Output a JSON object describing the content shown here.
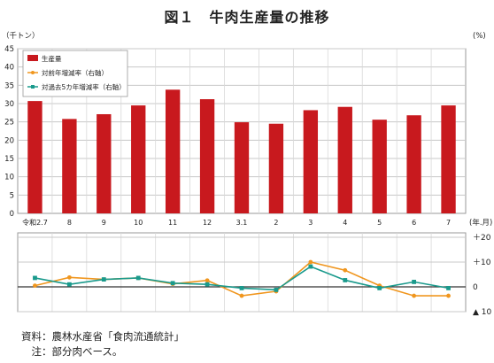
{
  "title": "図１　牛肉生産量の推移",
  "chart_data": {
    "type": "bar+line",
    "categories": [
      "令和2.7",
      "8",
      "9",
      "10",
      "11",
      "12",
      "3.1",
      "2",
      "3",
      "4",
      "5",
      "6",
      "7"
    ],
    "x_unit": "(年.月)",
    "left_axis": {
      "unit": "（千トン）",
      "range": [
        0,
        45
      ],
      "ticks": [
        "0",
        "5",
        "10",
        "15",
        "20",
        "25",
        "30",
        "35",
        "40",
        "45"
      ]
    },
    "right_axis": {
      "unit": "(%)",
      "range": [
        -10,
        20
      ],
      "tick_labels": [
        {
          "value": 20,
          "label": "＋20"
        },
        {
          "value": 10,
          "label": "＋10"
        },
        {
          "value": 0,
          "label": "0"
        },
        {
          "value": -10,
          "label": "▲ 10"
        }
      ]
    },
    "grid": true,
    "legend_position": "top-left",
    "series": [
      {
        "name": "生産量",
        "type": "bar",
        "axis": "left",
        "color": "#c8191e",
        "values": [
          30.7,
          25.8,
          27.1,
          29.5,
          33.8,
          31.2,
          24.9,
          24.5,
          28.2,
          29.1,
          25.6,
          26.8,
          29.5
        ]
      },
      {
        "name": "対前年増減率（右軸）",
        "type": "line",
        "axis": "right",
        "color": "#f0961e",
        "values": [
          0.5,
          3.8,
          3.0,
          3.6,
          1.2,
          2.6,
          -3.6,
          -1.8,
          10.0,
          6.7,
          0.5,
          -3.6,
          -3.6
        ]
      },
      {
        "name": "対過去5カ年増減率（右軸）",
        "type": "line",
        "axis": "right",
        "color": "#1a9a8c",
        "values": [
          3.6,
          1.0,
          3.0,
          3.6,
          1.5,
          1.0,
          -0.5,
          -1.2,
          8.2,
          2.7,
          -0.5,
          2.0,
          -0.5
        ]
      }
    ]
  },
  "notes": {
    "source": "資料：農林水産省「食肉流通統計」",
    "note": "　注：部分肉ベース。"
  }
}
